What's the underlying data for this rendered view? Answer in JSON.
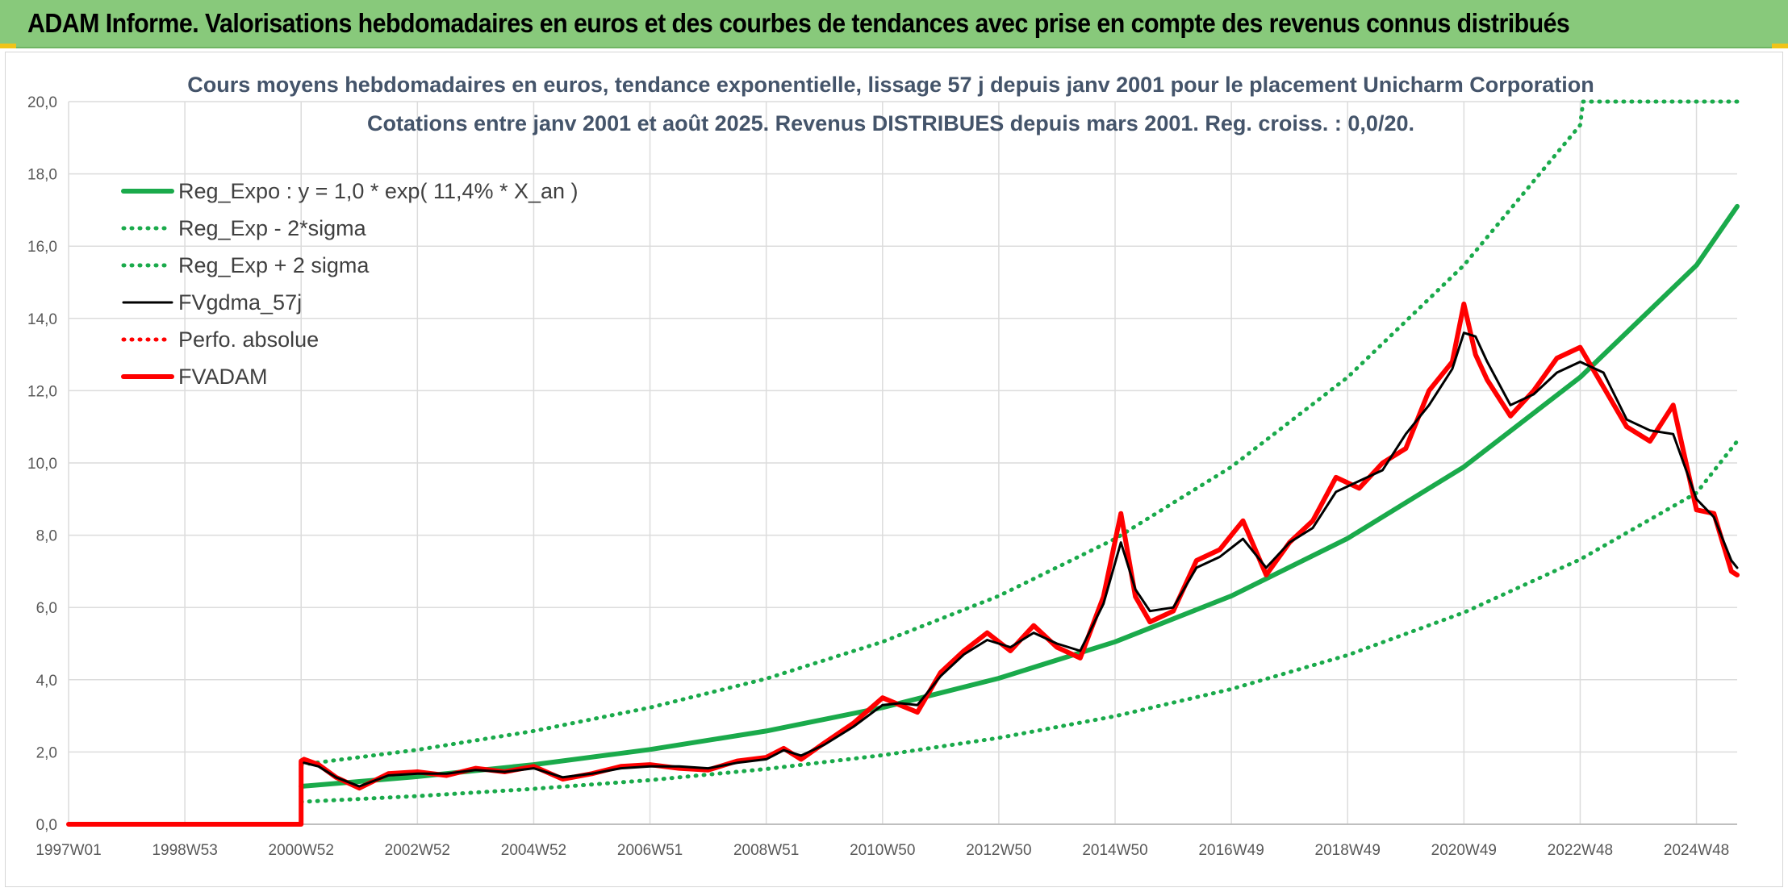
{
  "header": {
    "title": "ADAM Informe. Valorisations hebdomadaires en euros et des courbes de tendances avec prise en compte des revenus connus distribués"
  },
  "colors": {
    "header_bg": "#88c97b",
    "trend": "#1aaa4b",
    "black": "#000000",
    "red": "#ff0000",
    "grid": "#dcdcdc"
  },
  "chart_data": {
    "type": "line",
    "title": "Cours moyens hebdomadaires en euros, tendance exponentielle, lissage 57 j depuis janv 2001 pour le placement Unicharm Corporation",
    "subtitle": "Cotations entre janv 2001 et août 2025. Revenus DISTRIBUES depuis mars 2001. Reg. croiss. : 0,0/20.",
    "xlabel": "",
    "ylabel": "",
    "x_range": [
      1997.0,
      2025.7
    ],
    "ylim": [
      0,
      20
    ],
    "yticks": [
      "0,0",
      "2,0",
      "4,0",
      "6,0",
      "8,0",
      "10,0",
      "12,0",
      "14,0",
      "16,0",
      "18,0",
      "20,0"
    ],
    "xticks": [
      {
        "label": "1997W01",
        "x": 1997.0
      },
      {
        "label": "1998W53",
        "x": 1999.0
      },
      {
        "label": "2000W52",
        "x": 2001.0
      },
      {
        "label": "2002W52",
        "x": 2003.0
      },
      {
        "label": "2004W52",
        "x": 2005.0
      },
      {
        "label": "2006W51",
        "x": 2007.0
      },
      {
        "label": "2008W51",
        "x": 2009.0
      },
      {
        "label": "2010W50",
        "x": 2011.0
      },
      {
        "label": "2012W50",
        "x": 2013.0
      },
      {
        "label": "2014W50",
        "x": 2015.0
      },
      {
        "label": "2016W49",
        "x": 2017.0
      },
      {
        "label": "2018W49",
        "x": 2019.0
      },
      {
        "label": "2020W49",
        "x": 2021.0
      },
      {
        "label": "2022W48",
        "x": 2023.0
      },
      {
        "label": "2024W48",
        "x": 2025.0
      }
    ],
    "grid": "on",
    "legend_position": "top-left",
    "series": [
      {
        "name": "Reg_Expo : y = 1,0 * exp( 11,4% *  X_an )",
        "style": "solid-thick",
        "color": "#1aaa4b",
        "x": [
          2001.0,
          2003.0,
          2005.0,
          2007.0,
          2009.0,
          2011.0,
          2013.0,
          2015.0,
          2017.0,
          2019.0,
          2021.0,
          2023.0,
          2025.0,
          2025.7
        ],
        "y": [
          1.05,
          1.32,
          1.65,
          2.07,
          2.58,
          3.23,
          4.04,
          5.05,
          6.32,
          7.91,
          9.89,
          12.37,
          15.47,
          17.1
        ]
      },
      {
        "name": "Reg_Exp - 2*sigma",
        "style": "dotted",
        "color": "#1aaa4b",
        "x": [
          2001.0,
          2003.0,
          2005.0,
          2007.0,
          2009.0,
          2011.0,
          2013.0,
          2015.0,
          2017.0,
          2019.0,
          2021.0,
          2023.0,
          2025.0,
          2025.7
        ],
        "y": [
          0.62,
          0.78,
          0.98,
          1.22,
          1.53,
          1.91,
          2.39,
          2.99,
          3.74,
          4.68,
          5.86,
          7.33,
          9.17,
          10.6
        ]
      },
      {
        "name": "Reg_Exp + 2 sigma",
        "style": "dotted",
        "color": "#1aaa4b",
        "x": [
          2001.0,
          2003.0,
          2005.0,
          2007.0,
          2009.0,
          2011.0,
          2013.0,
          2015.0,
          2017.0,
          2019.0,
          2021.0,
          2023.0,
          2023.05,
          2025.7
        ],
        "y": [
          1.65,
          2.06,
          2.58,
          3.23,
          4.03,
          5.05,
          6.32,
          7.9,
          9.89,
          12.37,
          15.47,
          19.35,
          20.0,
          20.0
        ]
      },
      {
        "name": "FVgdma_57j",
        "style": "solid",
        "color": "#000000",
        "x": [
          2001.05,
          2001.3,
          2001.6,
          2002.0,
          2002.5,
          2003.0,
          2003.5,
          2004.0,
          2004.5,
          2005.0,
          2005.5,
          2006.0,
          2006.5,
          2007.0,
          2007.5,
          2008.0,
          2008.5,
          2009.0,
          2009.3,
          2009.6,
          2010.0,
          2010.5,
          2011.0,
          2011.3,
          2011.6,
          2012.0,
          2012.4,
          2012.8,
          2013.2,
          2013.6,
          2014.0,
          2014.4,
          2014.8,
          2015.1,
          2015.35,
          2015.6,
          2016.0,
          2016.4,
          2016.8,
          2017.2,
          2017.6,
          2018.0,
          2018.4,
          2018.8,
          2019.2,
          2019.6,
          2020.0,
          2020.4,
          2020.8,
          2021.0,
          2021.2,
          2021.4,
          2021.8,
          2022.2,
          2022.6,
          2023.0,
          2023.4,
          2023.8,
          2024.2,
          2024.6,
          2025.0,
          2025.3,
          2025.6,
          2025.7
        ],
        "y": [
          1.7,
          1.6,
          1.3,
          1.05,
          1.35,
          1.4,
          1.4,
          1.5,
          1.45,
          1.55,
          1.3,
          1.4,
          1.55,
          1.6,
          1.6,
          1.55,
          1.7,
          1.8,
          2.05,
          1.9,
          2.2,
          2.7,
          3.3,
          3.35,
          3.3,
          4.1,
          4.7,
          5.1,
          4.9,
          5.3,
          5.0,
          4.8,
          6.1,
          7.8,
          6.5,
          5.9,
          6.0,
          7.1,
          7.4,
          7.9,
          7.1,
          7.8,
          8.2,
          9.2,
          9.5,
          9.8,
          10.8,
          11.6,
          12.6,
          13.6,
          13.5,
          12.8,
          11.6,
          11.9,
          12.5,
          12.8,
          12.5,
          11.2,
          10.9,
          10.8,
          9.0,
          8.5,
          7.3,
          7.1
        ]
      },
      {
        "name": "Perfo. absolue",
        "style": "dotted",
        "color": "#ff0000",
        "x": [
          2001.05,
          2001.3,
          2001.6,
          2002.0,
          2002.5,
          2003.0,
          2003.5,
          2004.0,
          2004.5,
          2005.0,
          2005.5,
          2006.0,
          2006.5,
          2007.0,
          2007.5,
          2008.0,
          2008.5,
          2009.0,
          2009.3,
          2009.6,
          2010.0,
          2010.5,
          2011.0,
          2011.3,
          2011.6,
          2012.0,
          2012.4,
          2012.8,
          2013.2,
          2013.6,
          2014.0,
          2014.4,
          2014.8,
          2015.1,
          2015.35,
          2015.6,
          2016.0,
          2016.4,
          2016.8,
          2017.2,
          2017.6,
          2018.0,
          2018.4,
          2018.8,
          2019.2,
          2019.6,
          2020.0,
          2020.4,
          2020.8,
          2021.0,
          2021.2,
          2021.4,
          2021.8,
          2022.2,
          2022.6,
          2023.0,
          2023.4,
          2023.8,
          2024.2,
          2024.6,
          2025.0,
          2025.3,
          2025.6,
          2025.7
        ],
        "y": [
          1.8,
          1.65,
          1.3,
          1.0,
          1.4,
          1.45,
          1.35,
          1.55,
          1.45,
          1.6,
          1.25,
          1.4,
          1.6,
          1.65,
          1.55,
          1.5,
          1.75,
          1.85,
          2.1,
          1.8,
          2.25,
          2.8,
          3.5,
          3.3,
          3.1,
          4.2,
          4.8,
          5.3,
          4.8,
          5.5,
          4.9,
          4.6,
          6.3,
          8.6,
          6.3,
          5.6,
          5.9,
          7.3,
          7.6,
          8.4,
          6.9,
          7.8,
          8.4,
          9.6,
          9.3,
          10.0,
          10.4,
          12.0,
          12.8,
          14.4,
          13.0,
          12.3,
          11.3,
          12.0,
          12.9,
          13.2,
          12.1,
          11.0,
          10.6,
          11.6,
          8.7,
          8.6,
          7.0,
          6.9
        ]
      },
      {
        "name": "FVADAM",
        "style": "solid-thick",
        "color": "#ff0000",
        "x": [
          1997.0,
          2001.0,
          2001.0,
          2001.05,
          2001.3,
          2001.6,
          2002.0,
          2002.5,
          2003.0,
          2003.5,
          2004.0,
          2004.5,
          2005.0,
          2005.5,
          2006.0,
          2006.5,
          2007.0,
          2007.5,
          2008.0,
          2008.5,
          2009.0,
          2009.3,
          2009.6,
          2010.0,
          2010.5,
          2011.0,
          2011.3,
          2011.6,
          2012.0,
          2012.4,
          2012.8,
          2013.2,
          2013.6,
          2014.0,
          2014.4,
          2014.8,
          2015.1,
          2015.35,
          2015.6,
          2016.0,
          2016.4,
          2016.8,
          2017.2,
          2017.6,
          2018.0,
          2018.4,
          2018.8,
          2019.2,
          2019.6,
          2020.0,
          2020.4,
          2020.8,
          2021.0,
          2021.2,
          2021.4,
          2021.8,
          2022.2,
          2022.6,
          2023.0,
          2023.4,
          2023.8,
          2024.2,
          2024.6,
          2025.0,
          2025.3,
          2025.6,
          2025.7
        ],
        "y": [
          0.0,
          0.0,
          1.75,
          1.8,
          1.65,
          1.3,
          1.0,
          1.4,
          1.45,
          1.35,
          1.55,
          1.45,
          1.6,
          1.25,
          1.4,
          1.6,
          1.65,
          1.55,
          1.5,
          1.75,
          1.85,
          2.1,
          1.8,
          2.25,
          2.8,
          3.5,
          3.3,
          3.1,
          4.2,
          4.8,
          5.3,
          4.8,
          5.5,
          4.9,
          4.6,
          6.3,
          8.6,
          6.3,
          5.6,
          5.9,
          7.3,
          7.6,
          8.4,
          6.9,
          7.8,
          8.4,
          9.6,
          9.3,
          10.0,
          10.4,
          12.0,
          12.8,
          14.4,
          13.0,
          12.3,
          11.3,
          12.0,
          12.9,
          13.2,
          12.1,
          11.0,
          10.6,
          11.6,
          8.7,
          8.6,
          7.0,
          6.9
        ]
      }
    ]
  }
}
